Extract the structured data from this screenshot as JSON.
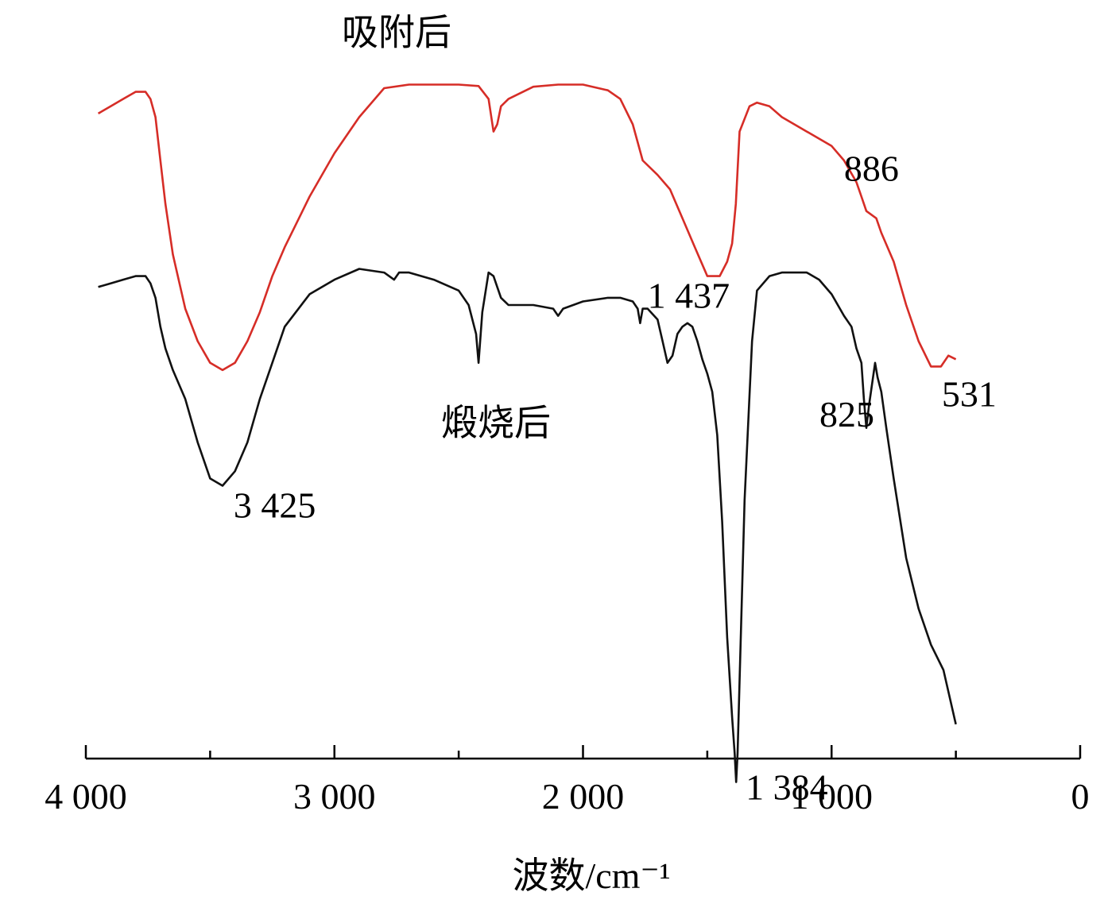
{
  "chart_data": {
    "type": "line",
    "title": "",
    "xlabel": "波数/cm⁻¹",
    "ylabel": "",
    "xlim": [
      4000,
      0
    ],
    "x_reversed": true,
    "grid": false,
    "ylim": [
      0,
      100
    ],
    "y_units": "relative transmittance (arbitrary, offset)",
    "x_major_ticks": [
      4000,
      3000,
      2000,
      1000,
      0
    ],
    "x_tick_labels": [
      "4 000",
      "3 000",
      "2 000",
      "1 000",
      "0"
    ],
    "x_minor_ticks": [
      3500,
      2500,
      1500,
      500
    ],
    "series": [
      {
        "name": "吸附后",
        "color": "#d62d27",
        "label_at": [
          2750,
          96
        ],
        "x": [
          3950,
          3900,
          3850,
          3800,
          3760,
          3740,
          3720,
          3700,
          3680,
          3650,
          3600,
          3550,
          3500,
          3450,
          3400,
          3350,
          3300,
          3250,
          3200,
          3100,
          3000,
          2900,
          2800,
          2700,
          2600,
          2500,
          2420,
          2380,
          2360,
          2345,
          2330,
          2300,
          2200,
          2100,
          2000,
          1900,
          1850,
          1800,
          1760,
          1700,
          1650,
          1600,
          1550,
          1500,
          1450,
          1420,
          1400,
          1385,
          1370,
          1330,
          1300,
          1250,
          1200,
          1100,
          1000,
          950,
          900,
          880,
          860,
          820,
          800,
          750,
          700,
          650,
          600,
          560,
          530,
          500
        ],
        "y": [
          86.5,
          87.5,
          88.5,
          89.5,
          89.5,
          88.5,
          86,
          80,
          74,
          67,
          59.5,
          55,
          52,
          51,
          52,
          55,
          59,
          64,
          68,
          75,
          81,
          86,
          90,
          90.5,
          90.5,
          90.5,
          90.3,
          88.5,
          84,
          85,
          87.5,
          88.5,
          90.2,
          90.5,
          90.5,
          89.7,
          88.5,
          85,
          80,
          78,
          76,
          72,
          68,
          64,
          64,
          66,
          68.5,
          74,
          84,
          87.5,
          88,
          87.5,
          86,
          84,
          82,
          80,
          77,
          75,
          73,
          72,
          70,
          66,
          60,
          55,
          51.5,
          51.5,
          53,
          52.5
        ]
      },
      {
        "name": "煅烧后",
        "color": "#111111",
        "label_at": [
          2350,
          42
        ],
        "x": [
          3950,
          3900,
          3850,
          3800,
          3760,
          3740,
          3720,
          3700,
          3680,
          3650,
          3600,
          3550,
          3500,
          3450,
          3400,
          3350,
          3300,
          3250,
          3200,
          3100,
          3000,
          2900,
          2800,
          2760,
          2740,
          2700,
          2600,
          2500,
          2460,
          2430,
          2420,
          2405,
          2380,
          2360,
          2345,
          2330,
          2300,
          2200,
          2120,
          2100,
          2080,
          2000,
          1900,
          1850,
          1800,
          1780,
          1770,
          1760,
          1740,
          1700,
          1680,
          1660,
          1640,
          1620,
          1600,
          1580,
          1560,
          1540,
          1520,
          1500,
          1480,
          1460,
          1440,
          1420,
          1400,
          1390,
          1384,
          1378,
          1370,
          1350,
          1320,
          1300,
          1250,
          1200,
          1150,
          1100,
          1050,
          1000,
          950,
          920,
          900,
          880,
          870,
          860,
          850,
          825,
          815,
          800,
          780,
          750,
          700,
          650,
          600,
          550,
          500
        ],
        "y": [
          62.5,
          63,
          63.5,
          64,
          64,
          63,
          61,
          57,
          54,
          51,
          47,
          41,
          36,
          35,
          37,
          41,
          47,
          52,
          57,
          61.5,
          63.5,
          65,
          64.5,
          63.5,
          64.5,
          64.5,
          63.5,
          62,
          60,
          56,
          52,
          59,
          64.5,
          64,
          62.5,
          61,
          60,
          60,
          59.5,
          58.5,
          59.5,
          60.5,
          61,
          61,
          60.5,
          59.5,
          57.5,
          59.5,
          59.5,
          58,
          55,
          52,
          53,
          56,
          57,
          57.5,
          57,
          55,
          52.5,
          50.5,
          48,
          42,
          30,
          14,
          3,
          -2,
          -6,
          -2,
          8,
          33,
          55,
          62,
          64,
          64.5,
          64.5,
          64.5,
          63.5,
          61.5,
          58.5,
          57,
          54,
          52,
          47,
          43,
          46,
          52,
          50,
          48,
          43,
          36,
          25,
          18,
          13,
          9.5,
          2
        ]
      }
    ],
    "annotations": [
      {
        "text": "3 425",
        "x": 3425,
        "series": "煅烧后"
      },
      {
        "text": "1 437",
        "x": 1437,
        "series": "吸附后"
      },
      {
        "text": "886",
        "x": 886,
        "series": "吸附后"
      },
      {
        "text": "531",
        "x": 531,
        "series": "吸附后"
      },
      {
        "text": "825",
        "x": 825,
        "series": "煅烧后"
      },
      {
        "text": "1 384",
        "x": 1384,
        "series": "煅烧后"
      }
    ]
  }
}
